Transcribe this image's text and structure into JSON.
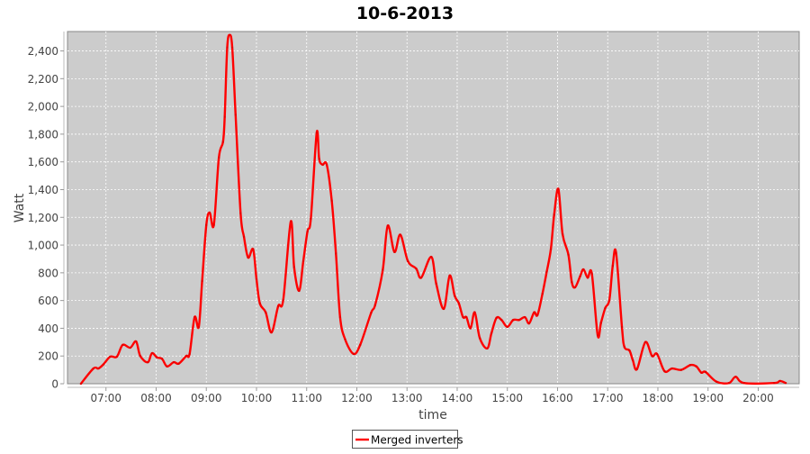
{
  "chart_data": {
    "type": "line",
    "title": "10-6-2013",
    "xlabel": "time",
    "ylabel": "Watt",
    "xlim": [
      "06:14",
      "20:49"
    ],
    "ylim": [
      0,
      2540
    ],
    "x_ticks": [
      "07:00",
      "08:00",
      "09:00",
      "10:00",
      "11:00",
      "12:00",
      "13:00",
      "14:00",
      "15:00",
      "16:00",
      "17:00",
      "18:00",
      "19:00",
      "20:00"
    ],
    "y_ticks": [
      0,
      200,
      400,
      600,
      800,
      1000,
      1200,
      1400,
      1600,
      1800,
      2000,
      2200,
      2400
    ],
    "y_tick_labels": [
      "0",
      "200",
      "400",
      "600",
      "800",
      "1,000",
      "1,200",
      "1,400",
      "1,600",
      "1,800",
      "2,000",
      "2,200",
      "2,400"
    ],
    "grid": true,
    "legend_position": "bottom",
    "colors": {
      "series": "#ff0000",
      "plot_background": "#cccccc",
      "grid": "#ffffff"
    },
    "series": [
      {
        "name": "Merged inverters",
        "x": [
          "06:30",
          "06:45",
          "06:51",
          "06:57",
          "07:05",
          "07:13",
          "07:20",
          "07:29",
          "07:36",
          "07:41",
          "07:50",
          "07:55",
          "08:01",
          "08:07",
          "08:13",
          "08:21",
          "08:27",
          "08:36",
          "08:40",
          "08:46",
          "08:51",
          "08:55",
          "09:00",
          "09:04",
          "09:09",
          "09:15",
          "09:20",
          "09:22",
          "09:25",
          "09:28",
          "09:31",
          "09:35",
          "09:41",
          "09:45",
          "09:50",
          "09:56",
          "10:00",
          "10:04",
          "10:11",
          "10:18",
          "10:26",
          "10:32",
          "10:41",
          "10:45",
          "10:51",
          "10:56",
          "11:01",
          "11:05",
          "11:12",
          "11:15",
          "11:19",
          "11:24",
          "11:30",
          "11:35",
          "11:40",
          "11:46",
          "11:56",
          "12:04",
          "12:17",
          "12:22",
          "12:31",
          "12:37",
          "12:45",
          "12:52",
          "13:01",
          "13:11",
          "13:17",
          "13:29",
          "13:35",
          "13:44",
          "13:51",
          "13:57",
          "14:02",
          "14:07",
          "14:11",
          "14:16",
          "14:21",
          "14:27",
          "14:36",
          "14:41",
          "14:47",
          "14:53",
          "15:00",
          "15:07",
          "15:14",
          "15:21",
          "15:26",
          "15:32",
          "15:36",
          "15:42",
          "15:47",
          "15:52",
          "15:56",
          "16:01",
          "16:06",
          "16:13",
          "16:17",
          "16:21",
          "16:27",
          "16:31",
          "16:36",
          "16:41",
          "16:48",
          "16:52",
          "16:57",
          "17:02",
          "17:06",
          "17:10",
          "17:17",
          "17:20",
          "17:26",
          "17:30",
          "17:35",
          "17:45",
          "17:53",
          "17:59",
          "18:08",
          "18:17",
          "18:28",
          "18:39",
          "18:46",
          "18:52",
          "18:57",
          "19:10",
          "19:25",
          "19:33",
          "19:43",
          "20:19",
          "20:26",
          "20:33"
        ],
        "values": [
          0,
          110,
          110,
          140,
          195,
          195,
          280,
          260,
          305,
          200,
          155,
          220,
          190,
          180,
          125,
          155,
          145,
          200,
          215,
          480,
          410,
          740,
          1145,
          1235,
          1145,
          1630,
          1745,
          1925,
          2425,
          2515,
          2425,
          1940,
          1230,
          1060,
          910,
          970,
          755,
          580,
          515,
          370,
          560,
          605,
          1170,
          840,
          670,
          885,
          1100,
          1190,
          1810,
          1620,
          1580,
          1580,
          1320,
          940,
          480,
          320,
          215,
          280,
          510,
          570,
          820,
          1140,
          950,
          1075,
          885,
          830,
          765,
          915,
          720,
          540,
          780,
          635,
          580,
          480,
          480,
          400,
          515,
          330,
          255,
          365,
          475,
          460,
          410,
          460,
          460,
          480,
          435,
          515,
          495,
          650,
          805,
          970,
          1220,
          1405,
          1080,
          930,
          735,
          695,
          775,
          825,
          765,
          795,
          350,
          440,
          545,
          605,
          850,
          945,
          410,
          265,
          240,
          170,
          105,
          300,
          200,
          215,
          90,
          110,
          100,
          135,
          125,
          80,
          85,
          15,
          5,
          50,
          5,
          5,
          20,
          5
        ]
      }
    ]
  }
}
